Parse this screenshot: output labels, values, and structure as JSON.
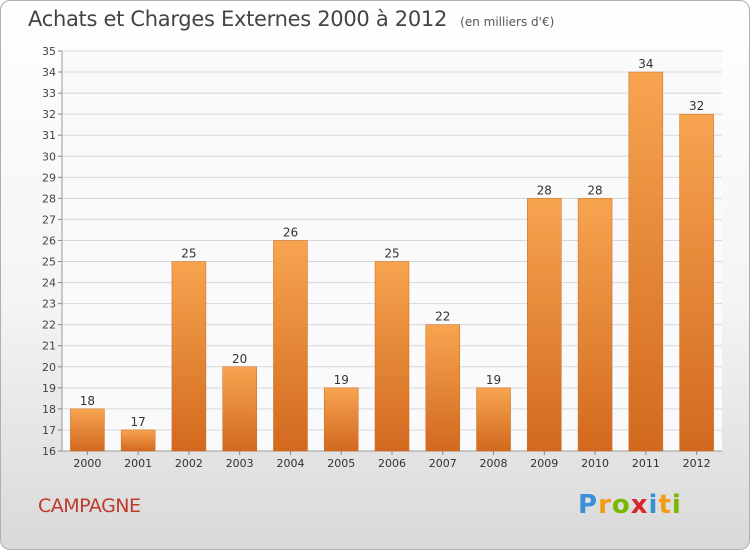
{
  "title": "Achats et Charges Externes 2000 à 2012",
  "unit_note": "(en milliers d'€)",
  "commune": "CAMPAGNE",
  "brand": {
    "text": "Proxiti",
    "letters": [
      "P",
      "r",
      "o",
      "x",
      "i",
      "t",
      "i"
    ],
    "colors": [
      "#3a8fd6",
      "#f39c12",
      "#7ab800",
      "#d9262a",
      "#3a8fd6",
      "#f39c12",
      "#7ab800"
    ]
  },
  "colors": {
    "bar_top": "#f7a451",
    "bar_bottom": "#d2691e",
    "commune": "#c0392b"
  },
  "chart_data": {
    "type": "bar",
    "categories": [
      "2000",
      "2001",
      "2002",
      "2003",
      "2004",
      "2005",
      "2006",
      "2007",
      "2008",
      "2009",
      "2010",
      "2011",
      "2012"
    ],
    "values": [
      18,
      17,
      25,
      20,
      26,
      19,
      25,
      22,
      19,
      28,
      28,
      34,
      32
    ],
    "ylim": [
      16,
      35
    ],
    "yticks": [
      16,
      17,
      18,
      19,
      20,
      21,
      22,
      23,
      24,
      25,
      26,
      27,
      28,
      29,
      30,
      31,
      32,
      33,
      34,
      35
    ],
    "grid": true,
    "data_labels": true
  }
}
